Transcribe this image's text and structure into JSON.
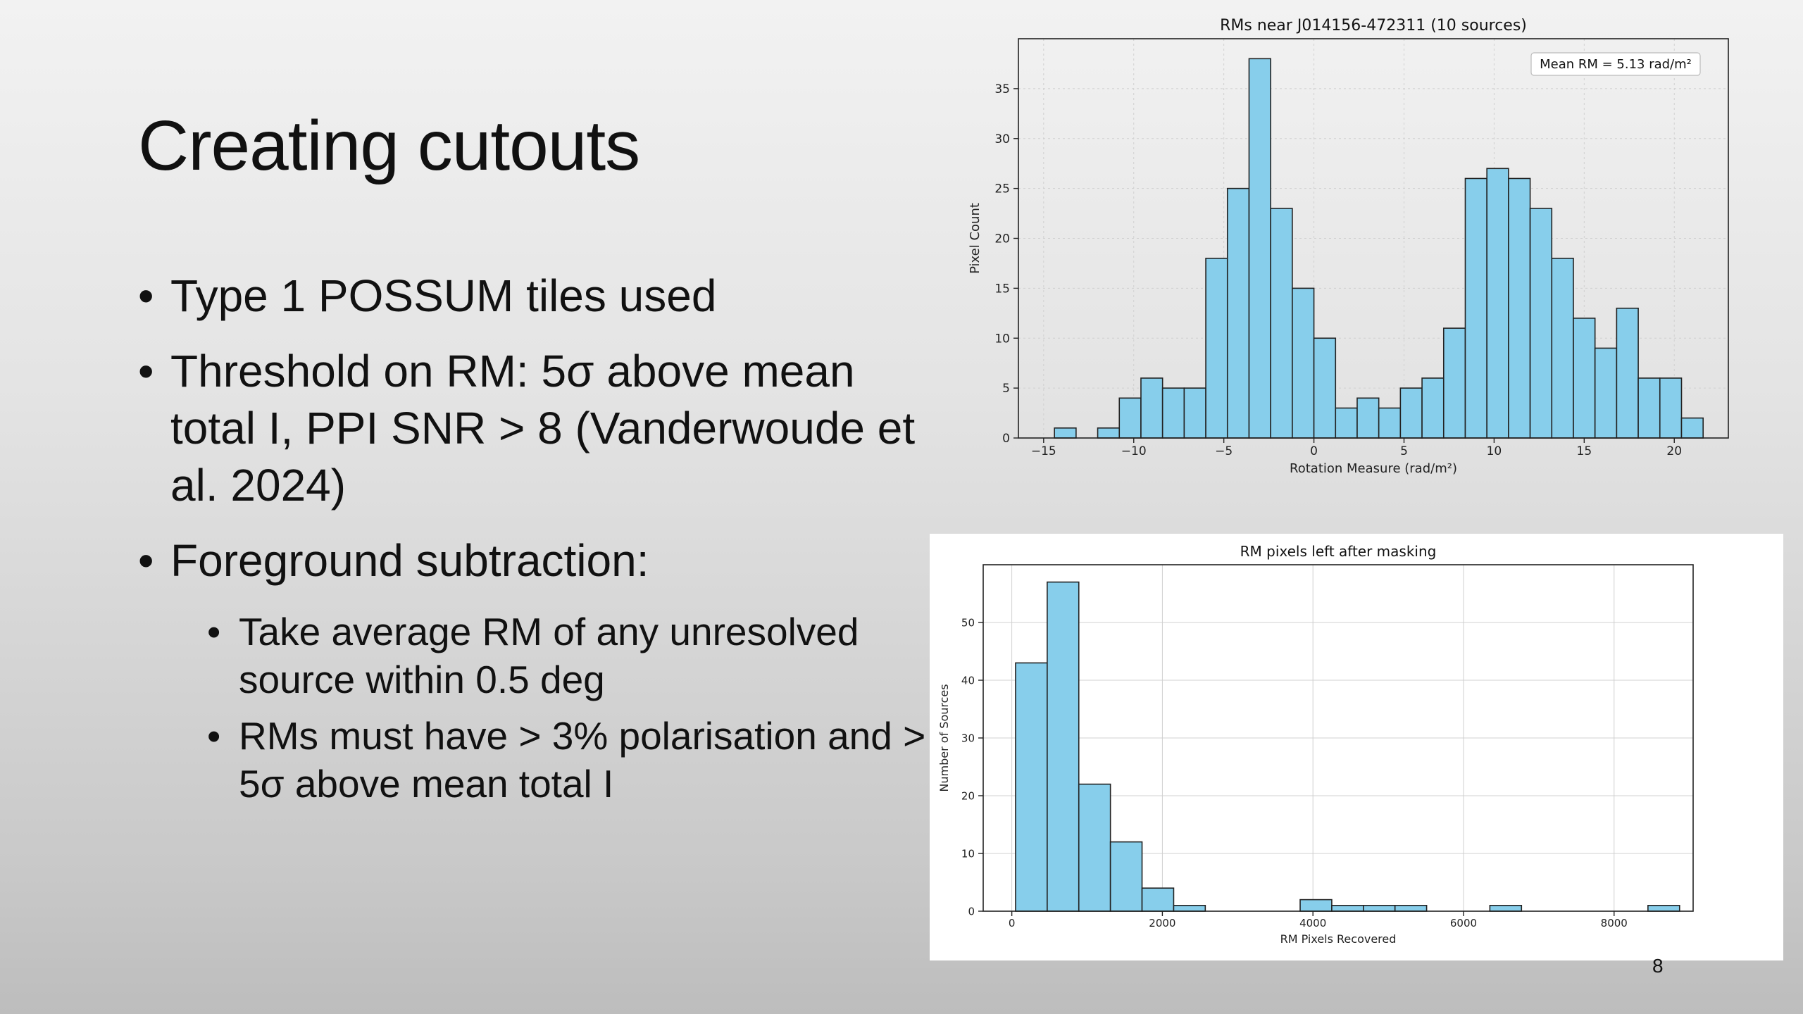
{
  "slide": {
    "title": "Creating cutouts",
    "bullets": [
      "Type 1 POSSUM tiles used",
      "Threshold on RM: 5σ above mean total I, PPI SNR > 8 (Vanderwoude et al. 2024)",
      "Foreground subtraction:"
    ],
    "sub_bullets": [
      "Take average RM of any unresolved source within 0.5 deg",
      "RMs must have > 3% polarisation and > 5σ above mean total I"
    ],
    "page_number": "8"
  },
  "colors": {
    "bar_fill": "#87ceeb",
    "bar_edge": "#222222",
    "grid": "#d0d0d0"
  },
  "chart_data": [
    {
      "type": "bar",
      "title": "RMs near J014156-472311 (10 sources)",
      "xlabel": "Rotation Measure (rad/m²)",
      "ylabel": "Pixel Count",
      "legend_text": "Mean RM = 5.13 rad/m²",
      "legend_position": "top-right",
      "grid": true,
      "xlim": [
        -16.4,
        23.0
      ],
      "ylim": [
        0,
        40
      ],
      "xticks": [
        -15,
        -10,
        -5,
        0,
        5,
        10,
        15,
        20
      ],
      "xtick_labels": [
        "−15",
        "−10",
        "−5",
        "0",
        "5",
        "10",
        "15",
        "20"
      ],
      "yticks": [
        0,
        5,
        10,
        15,
        20,
        25,
        30,
        35
      ],
      "bin_edges": [
        -14.4,
        -13.2,
        -12.0,
        -10.8,
        -9.6,
        -8.4,
        -7.2,
        -6.0,
        -4.8,
        -3.6,
        -2.4,
        -1.2,
        0.0,
        1.2,
        2.4,
        3.6,
        4.8,
        6.0,
        7.2,
        8.4,
        9.6,
        10.8,
        12.0,
        13.2,
        14.4,
        15.6,
        16.8,
        18.0,
        19.2,
        20.4,
        21.6
      ],
      "values": [
        1,
        0,
        1,
        4,
        6,
        5,
        5,
        18,
        25,
        38,
        23,
        15,
        10,
        3,
        4,
        3,
        5,
        6,
        11,
        26,
        27,
        26,
        23,
        18,
        12,
        9,
        13,
        6,
        6,
        2
      ]
    },
    {
      "type": "bar",
      "title": "RM pixels left after masking",
      "xlabel": "RM Pixels Recovered",
      "ylabel": "Number of Sources",
      "grid": true,
      "xlim": [
        -380,
        9050
      ],
      "ylim": [
        0,
        60
      ],
      "xticks": [
        0,
        2000,
        4000,
        6000,
        8000
      ],
      "xtick_labels": [
        "0",
        "2000",
        "4000",
        "6000",
        "8000"
      ],
      "yticks": [
        0,
        10,
        20,
        30,
        40,
        50
      ],
      "bin_edges": [
        50,
        470,
        890,
        1310,
        1730,
        2150,
        2570,
        2990,
        3410,
        3830,
        4250,
        4670,
        5090,
        5510,
        5930,
        6350,
        6770,
        7190,
        7610,
        8030,
        8450,
        8870
      ],
      "values": [
        43,
        57,
        22,
        12,
        4,
        1,
        0,
        0,
        0,
        2,
        1,
        1,
        1,
        0,
        0,
        1,
        0,
        0,
        0,
        0,
        1
      ]
    }
  ]
}
